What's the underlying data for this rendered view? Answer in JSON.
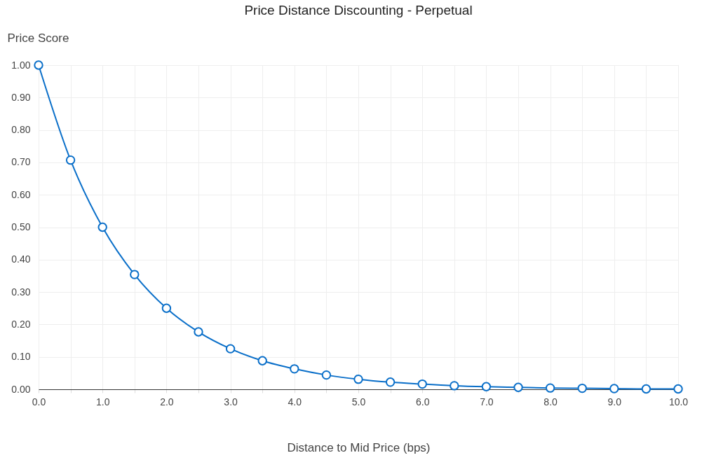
{
  "chart_data": {
    "type": "line",
    "title": "Price Distance Discounting - Perpetual",
    "xlabel": "Distance to Mid Price (bps)",
    "ylabel": "Price Score",
    "x": [
      0,
      0.5,
      1,
      1.5,
      2,
      2.5,
      3,
      3.5,
      4,
      4.5,
      5,
      5.5,
      6,
      6.5,
      7,
      7.5,
      8,
      8.5,
      9,
      9.5,
      10
    ],
    "series": [
      {
        "color": "#0a6fc9",
        "values": [
          1.0,
          0.707,
          0.5,
          0.354,
          0.25,
          0.177,
          0.125,
          0.088,
          0.063,
          0.044,
          0.031,
          0.022,
          0.016,
          0.011,
          0.008,
          0.006,
          0.004,
          0.003,
          0.002,
          0.001,
          0.001
        ]
      }
    ],
    "xlim": [
      0,
      10
    ],
    "ylim": [
      0,
      1
    ],
    "xticks": [
      {
        "value": 0,
        "label": "0.0"
      },
      {
        "value": 0.5,
        "label": null
      },
      {
        "value": 1,
        "label": "1.0"
      },
      {
        "value": 1.5,
        "label": null
      },
      {
        "value": 2,
        "label": "2.0"
      },
      {
        "value": 2.5,
        "label": null
      },
      {
        "value": 3,
        "label": "3.0"
      },
      {
        "value": 3.5,
        "label": null
      },
      {
        "value": 4,
        "label": "4.0"
      },
      {
        "value": 4.5,
        "label": null
      },
      {
        "value": 5,
        "label": "5.0"
      },
      {
        "value": 5.5,
        "label": null
      },
      {
        "value": 6,
        "label": "6.0"
      },
      {
        "value": 6.5,
        "label": null
      },
      {
        "value": 7,
        "label": "7.0"
      },
      {
        "value": 7.5,
        "label": null
      },
      {
        "value": 8,
        "label": "8.0"
      },
      {
        "value": 8.5,
        "label": null
      },
      {
        "value": 9,
        "label": "9.0"
      },
      {
        "value": 9.5,
        "label": null
      },
      {
        "value": 10,
        "label": "10.0"
      }
    ],
    "yticks": [
      {
        "value": 0,
        "label": "0.00"
      },
      {
        "value": 0.1,
        "label": "0.10"
      },
      {
        "value": 0.2,
        "label": "0.20"
      },
      {
        "value": 0.3,
        "label": "0.30"
      },
      {
        "value": 0.4,
        "label": "0.40"
      },
      {
        "value": 0.5,
        "label": "0.50"
      },
      {
        "value": 0.6,
        "label": "0.60"
      },
      {
        "value": 0.7,
        "label": "0.70"
      },
      {
        "value": 0.8,
        "label": "0.80"
      },
      {
        "value": 0.9,
        "label": "0.90"
      },
      {
        "value": 1,
        "label": "1.00"
      }
    ],
    "grid": true,
    "marker": "circle",
    "line_style": "solid",
    "legend": false
  }
}
